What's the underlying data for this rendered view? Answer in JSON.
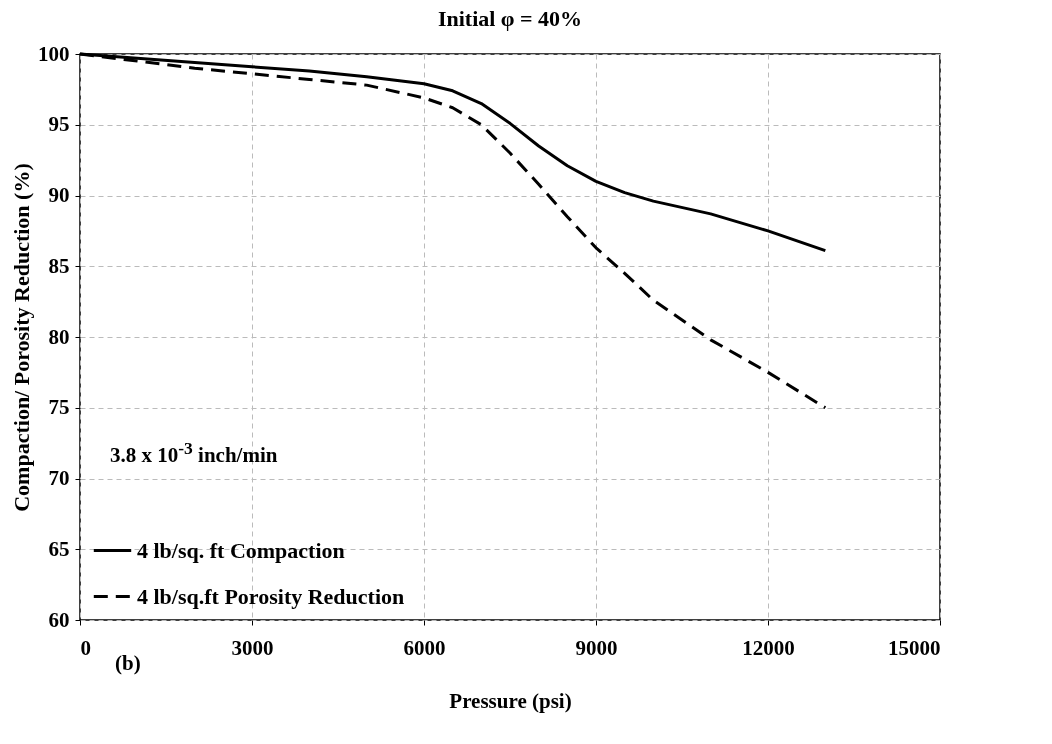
{
  "chart_data": {
    "type": "line",
    "title": "Initial φ = 40%",
    "xlabel": "Pressure (psi)",
    "ylabel": "Compaction/ Porosity Reduction (%)",
    "x": [
      0,
      1000,
      2000,
      3000,
      4000,
      5000,
      6000,
      6500,
      7000,
      7500,
      8000,
      8500,
      9000,
      9500,
      10000,
      11000,
      12000,
      13000
    ],
    "series": [
      {
        "name": "4 lb/sq. ft Compaction",
        "color": "#000000",
        "line_style": "solid",
        "values": [
          100,
          99.7,
          99.4,
          99.1,
          98.8,
          98.4,
          97.9,
          97.4,
          96.5,
          95.1,
          93.5,
          92.1,
          91,
          90.2,
          89.6,
          88.7,
          87.5,
          86.1
        ]
      },
      {
        "name": "4 lb/sq.ft Porosity Reduction",
        "color": "#000000",
        "line_style": "dashed",
        "values": [
          100,
          99.5,
          99,
          98.6,
          98.2,
          97.8,
          96.9,
          96.2,
          95,
          93,
          90.8,
          88.5,
          86.3,
          84.5,
          82.6,
          79.8,
          77.5,
          75
        ]
      }
    ],
    "xlim": [
      0,
      15000
    ],
    "xticks": [
      0,
      3000,
      6000,
      9000,
      12000,
      15000
    ],
    "ylim": [
      60,
      100
    ],
    "yticks": [
      60,
      65,
      70,
      75,
      80,
      85,
      90,
      95,
      100
    ],
    "grid": true,
    "legend": "bottom left",
    "marker": "none",
    "annotations": [
      "3.8 x 10$^{-3}$ inch/min",
      "(b)"
    ]
  }
}
